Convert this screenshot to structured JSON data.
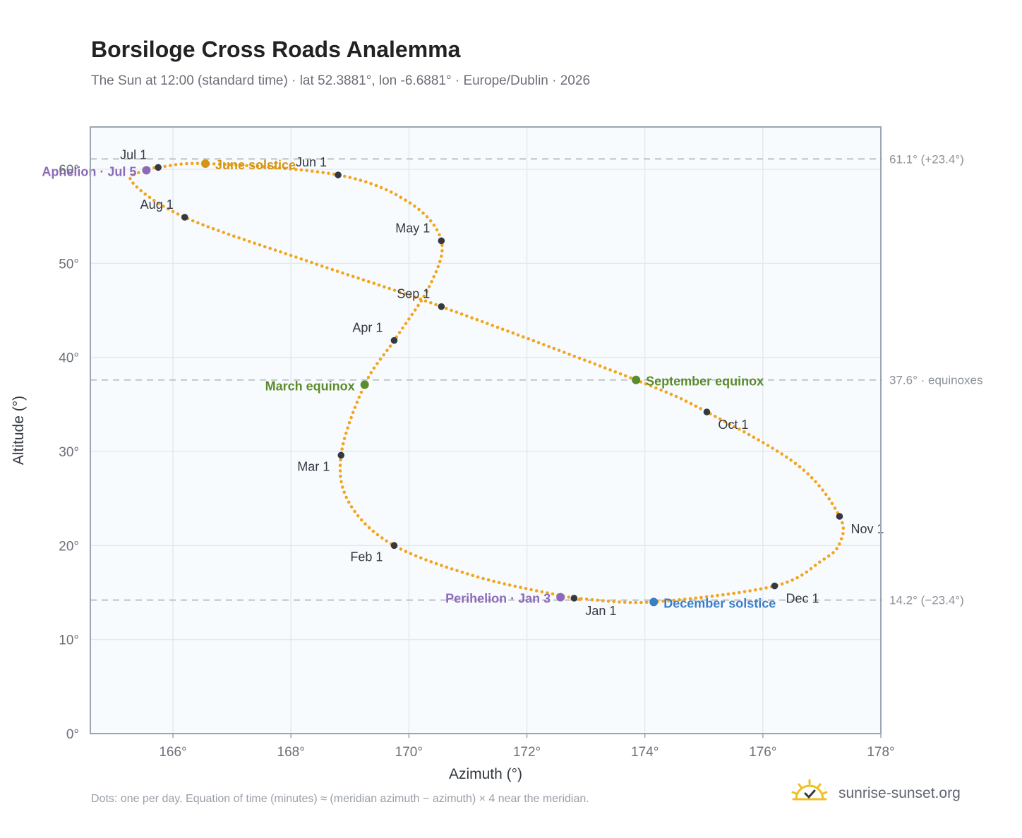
{
  "header": {
    "title": "Borsiloge Cross Roads Analemma",
    "subtitle": "The Sun at 12:00 (standard time) · lat 52.3881°, lon -6.6881° · Europe/Dublin · 2026"
  },
  "footer": {
    "note": "Dots: one per day. Equation of time (minutes) ≈ (meridian azimuth − azimuth) × 4 near the meridian.",
    "brand": "sunrise-sunset.org"
  },
  "colors": {
    "path": "#f2a51f",
    "month_marker": "#343841",
    "june_solstice": "#d49513",
    "december_solstice": "#3b7ec6",
    "equinox": "#5b8c2a",
    "apsis": "#8b6bb8",
    "reference_line": "#b9bec6",
    "grid": "#e4e9ef",
    "plot_background": "#f8fbfe",
    "plot_border": "#9aa6b4",
    "brand_sun": "#f0c020"
  },
  "chart_data": {
    "type": "scatter",
    "xlabel": "Azimuth (°)",
    "ylabel": "Altitude (°)",
    "xlim": [
      164.6,
      178.0
    ],
    "ylim": [
      0,
      64.5
    ],
    "xticks": [
      "166°",
      "168°",
      "170°",
      "172°",
      "174°",
      "176°",
      "178°"
    ],
    "xtick_values": [
      166,
      168,
      170,
      172,
      174,
      176,
      178
    ],
    "yticks": [
      "0°",
      "10°",
      "20°",
      "30°",
      "40°",
      "50°",
      "60°"
    ],
    "ytick_values": [
      0,
      10,
      20,
      30,
      40,
      50,
      60
    ],
    "grid": true,
    "reference_lines": [
      {
        "y": 61.1,
        "label": "61.1° (+23.4°)"
      },
      {
        "y": 37.6,
        "label": "37.6° · equinoxes"
      },
      {
        "y": 14.2,
        "label": "14.2° (−23.4°)"
      }
    ],
    "path_points": [
      {
        "date": "Jan 1",
        "az": 172.8,
        "alt": 14.4
      },
      {
        "date": "Jan 16",
        "az": 171.2,
        "alt": 16.6
      },
      {
        "date": "Feb 1",
        "az": 169.75,
        "alt": 20.0
      },
      {
        "date": "Feb 15",
        "az": 169.0,
        "alt": 24.4
      },
      {
        "date": "Mar 1",
        "az": 168.85,
        "alt": 29.6
      },
      {
        "date": "Mar 20",
        "az": 169.25,
        "alt": 37.1
      },
      {
        "date": "Apr 1",
        "az": 169.75,
        "alt": 41.8
      },
      {
        "date": "Apr 16",
        "az": 170.35,
        "alt": 47.6
      },
      {
        "date": "May 1",
        "az": 170.55,
        "alt": 52.4
      },
      {
        "date": "May 16",
        "az": 170.0,
        "alt": 56.5
      },
      {
        "date": "Jun 1",
        "az": 168.8,
        "alt": 59.4
      },
      {
        "date": "Jun 21",
        "az": 166.6,
        "alt": 60.6
      },
      {
        "date": "Jul 1",
        "az": 165.75,
        "alt": 60.2
      },
      {
        "date": "Jul 5",
        "az": 165.55,
        "alt": 59.9
      },
      {
        "date": "Jul 14",
        "az": 165.3,
        "alt": 58.7
      },
      {
        "date": "Aug 1",
        "az": 166.2,
        "alt": 54.9
      },
      {
        "date": "Aug 16",
        "az": 168.3,
        "alt": 50.2
      },
      {
        "date": "Sep 1",
        "az": 170.55,
        "alt": 45.4
      },
      {
        "date": "Sep 22",
        "az": 173.85,
        "alt": 37.6
      },
      {
        "date": "Oct 1",
        "az": 175.05,
        "alt": 34.2
      },
      {
        "date": "Oct 16",
        "az": 176.6,
        "alt": 28.5
      },
      {
        "date": "Nov 1",
        "az": 177.3,
        "alt": 23.1
      },
      {
        "date": "Nov 10",
        "az": 177.3,
        "alt": 20.2
      },
      {
        "date": "Nov 16",
        "az": 177.0,
        "alt": 18.4
      },
      {
        "date": "Dec 1",
        "az": 176.2,
        "alt": 15.7
      },
      {
        "date": "Dec 21",
        "az": 174.15,
        "alt": 14.0
      },
      {
        "date": "Dec 31",
        "az": 172.9,
        "alt": 14.35
      }
    ],
    "month_markers": [
      {
        "label": "Jan 1",
        "az": 172.8,
        "alt": 14.4,
        "label_pos": "below-right"
      },
      {
        "label": "Feb 1",
        "az": 169.75,
        "alt": 20.0,
        "label_pos": "below-left"
      },
      {
        "label": "Mar 1",
        "az": 168.85,
        "alt": 29.6,
        "label_pos": "below-left"
      },
      {
        "label": "Apr 1",
        "az": 169.75,
        "alt": 41.8,
        "label_pos": "above-left"
      },
      {
        "label": "May 1",
        "az": 170.55,
        "alt": 52.4,
        "label_pos": "above-left"
      },
      {
        "label": "Jun 1",
        "az": 168.8,
        "alt": 59.4,
        "label_pos": "above-left"
      },
      {
        "label": "Jul 1",
        "az": 165.75,
        "alt": 60.2,
        "label_pos": "above-left"
      },
      {
        "label": "Aug 1",
        "az": 166.2,
        "alt": 54.9,
        "label_pos": "above-left"
      },
      {
        "label": "Sep 1",
        "az": 170.55,
        "alt": 45.4,
        "label_pos": "above-left"
      },
      {
        "label": "Oct 1",
        "az": 175.05,
        "alt": 34.2,
        "label_pos": "below-right"
      },
      {
        "label": "Nov 1",
        "az": 177.3,
        "alt": 23.1,
        "label_pos": "below-right"
      },
      {
        "label": "Dec 1",
        "az": 176.2,
        "alt": 15.7,
        "label_pos": "below-right"
      }
    ],
    "events": [
      {
        "label": "June solstice",
        "az": 166.55,
        "alt": 60.6,
        "color": "#d49513",
        "label_pos": "right"
      },
      {
        "label": "December solstice",
        "az": 174.15,
        "alt": 14.0,
        "color": "#3b7ec6",
        "label_pos": "right"
      },
      {
        "label": "March equinox",
        "az": 169.25,
        "alt": 37.1,
        "color": "#5b8c2a",
        "label_pos": "left"
      },
      {
        "label": "September equinox",
        "az": 173.85,
        "alt": 37.6,
        "color": "#5b8c2a",
        "label_pos": "right"
      },
      {
        "label": "Perihelion · Jan 3",
        "az": 172.57,
        "alt": 14.5,
        "color": "#8b6bb8",
        "label_pos": "left"
      },
      {
        "label": "Aphelion · Jul 5",
        "az": 165.55,
        "alt": 59.9,
        "color": "#8b6bb8",
        "label_pos": "left"
      }
    ]
  }
}
